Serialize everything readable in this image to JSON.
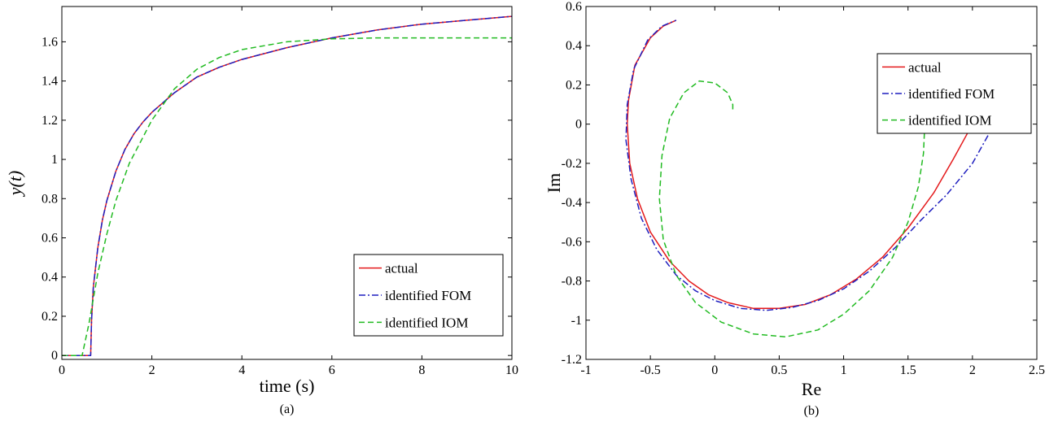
{
  "chart_data": [
    {
      "type": "line",
      "panel_label": "(a)",
      "xlabel": "time (s)",
      "ylabel": "y(t)",
      "xlim": [
        0,
        10
      ],
      "ylim": [
        -0.02,
        1.78
      ],
      "x_ticks": [
        0,
        2,
        4,
        6,
        8,
        10
      ],
      "y_ticks": [
        0,
        0.2,
        0.4,
        0.6,
        0.8,
        1,
        1.2,
        1.4,
        1.6
      ],
      "x_tick_labels": [
        "0",
        "2",
        "4",
        "6",
        "8",
        "10"
      ],
      "y_tick_labels": [
        "0",
        "0.2",
        "0.4",
        "0.6",
        "0.8",
        "1",
        "1.2",
        "1.4",
        "1.6"
      ],
      "grid": false,
      "legend_position": "bottom-right",
      "series": [
        {
          "name": "actual",
          "color": "#e41a1c",
          "dash": "solid",
          "x": [
            0,
            0.64,
            0.66,
            0.7,
            0.8,
            0.9,
            1.0,
            1.2,
            1.4,
            1.6,
            1.8,
            2.0,
            2.5,
            3.0,
            3.5,
            4.0,
            5.0,
            6.0,
            7.0,
            8.0,
            9.0,
            10.0
          ],
          "y": [
            0,
            0,
            0.18,
            0.35,
            0.55,
            0.69,
            0.79,
            0.94,
            1.05,
            1.13,
            1.19,
            1.24,
            1.34,
            1.42,
            1.47,
            1.51,
            1.57,
            1.62,
            1.66,
            1.69,
            1.71,
            1.73
          ]
        },
        {
          "name": "identified FOM",
          "color": "#1f1fbf",
          "dash": "dashdot",
          "x": [
            0,
            0.64,
            0.66,
            0.7,
            0.8,
            0.9,
            1.0,
            1.2,
            1.4,
            1.6,
            1.8,
            2.0,
            2.5,
            3.0,
            3.5,
            4.0,
            5.0,
            6.0,
            7.0,
            8.0,
            9.0,
            10.0
          ],
          "y": [
            0,
            0,
            0.18,
            0.35,
            0.55,
            0.69,
            0.79,
            0.94,
            1.05,
            1.13,
            1.19,
            1.24,
            1.34,
            1.42,
            1.47,
            1.51,
            1.57,
            1.62,
            1.66,
            1.69,
            1.71,
            1.73
          ]
        },
        {
          "name": "identified IOM",
          "color": "#22bb22",
          "dash": "dashed",
          "x": [
            0,
            0.45,
            0.6,
            0.8,
            1.0,
            1.2,
            1.5,
            2.0,
            2.5,
            3.0,
            3.5,
            4.0,
            5.0,
            6.0,
            7.0,
            8.0,
            9.0,
            10.0
          ],
          "y": [
            0,
            0,
            0.16,
            0.42,
            0.62,
            0.79,
            0.98,
            1.2,
            1.36,
            1.46,
            1.52,
            1.56,
            1.6,
            1.615,
            1.62,
            1.62,
            1.62,
            1.62
          ]
        }
      ]
    },
    {
      "type": "line",
      "panel_label": "(b)",
      "xlabel": "Re",
      "ylabel": "Im",
      "xlim": [
        -1,
        2.5
      ],
      "ylim": [
        -1.2,
        0.6
      ],
      "x_ticks": [
        -1,
        -0.5,
        0,
        0.5,
        1,
        1.5,
        2,
        2.5
      ],
      "y_ticks": [
        -1.2,
        -1,
        -0.8,
        -0.6,
        -0.4,
        -0.2,
        0,
        0.2,
        0.4,
        0.6
      ],
      "x_tick_labels": [
        "-1",
        "-0.5",
        "0",
        "0.5",
        "1",
        "1.5",
        "2",
        "2.5"
      ],
      "y_tick_labels": [
        "-1.2",
        "-1",
        "-0.8",
        "-0.6",
        "-0.4",
        "-0.2",
        "0",
        "0.2",
        "0.4",
        "0.6"
      ],
      "grid": false,
      "legend_position": "top-right",
      "series": [
        {
          "name": "actual",
          "color": "#e41a1c",
          "dash": "solid",
          "x": [
            2.0,
            1.85,
            1.7,
            1.5,
            1.3,
            1.1,
            0.9,
            0.7,
            0.5,
            0.3,
            0.1,
            -0.05,
            -0.2,
            -0.35,
            -0.5,
            -0.6,
            -0.66,
            -0.68,
            -0.67,
            -0.62,
            -0.5,
            -0.4,
            -0.3
          ],
          "y": [
            0,
            -0.18,
            -0.35,
            -0.53,
            -0.68,
            -0.79,
            -0.87,
            -0.92,
            -0.94,
            -0.94,
            -0.91,
            -0.87,
            -0.8,
            -0.7,
            -0.55,
            -0.38,
            -0.2,
            0,
            0.12,
            0.3,
            0.44,
            0.5,
            0.53
          ]
        },
        {
          "name": "identified FOM",
          "color": "#1f1fbf",
          "dash": "dashdot",
          "x": [
            2.17,
            2.0,
            1.8,
            1.6,
            1.4,
            1.2,
            1.0,
            0.8,
            0.6,
            0.4,
            0.2,
            0.0,
            -0.15,
            -0.3,
            -0.45,
            -0.57,
            -0.65,
            -0.69,
            -0.68,
            -0.63,
            -0.52,
            -0.41,
            -0.3
          ],
          "y": [
            0,
            -0.2,
            -0.36,
            -0.49,
            -0.63,
            -0.75,
            -0.84,
            -0.9,
            -0.935,
            -0.95,
            -0.94,
            -0.9,
            -0.85,
            -0.77,
            -0.64,
            -0.48,
            -0.28,
            -0.08,
            0.1,
            0.28,
            0.43,
            0.5,
            0.53
          ]
        },
        {
          "name": "identified IOM",
          "color": "#22bb22",
          "dash": "dashed",
          "x": [
            1.63,
            1.62,
            1.58,
            1.5,
            1.38,
            1.2,
            1.0,
            0.8,
            0.55,
            0.3,
            0.05,
            -0.15,
            -0.3,
            -0.4,
            -0.43,
            -0.41,
            -0.35,
            -0.24,
            -0.12,
            0.0,
            0.1,
            0.14,
            0.14
          ],
          "y": [
            0,
            -0.15,
            -0.32,
            -0.5,
            -0.68,
            -0.85,
            -0.97,
            -1.05,
            -1.085,
            -1.07,
            -1.01,
            -0.91,
            -0.77,
            -0.59,
            -0.38,
            -0.16,
            0.03,
            0.16,
            0.22,
            0.21,
            0.16,
            0.1,
            0.07
          ]
        }
      ]
    }
  ]
}
